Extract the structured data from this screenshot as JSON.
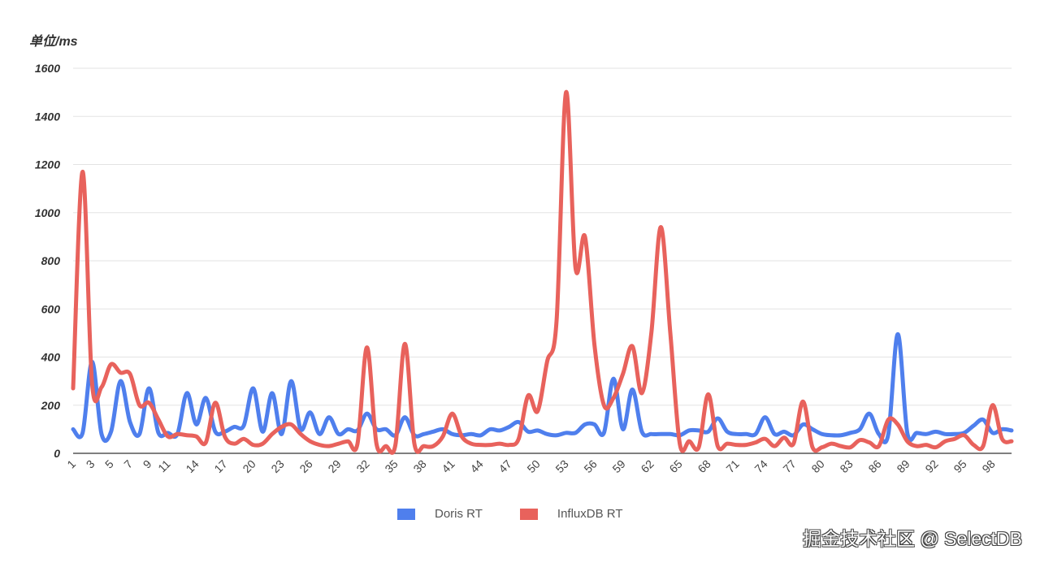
{
  "chart_data": {
    "type": "line",
    "title": "",
    "ylabel": "单位/ms",
    "xlabel": "",
    "ylim": [
      0,
      1600
    ],
    "yticks": [
      0,
      200,
      400,
      600,
      800,
      1000,
      1200,
      1400,
      1600
    ],
    "xlim": [
      1,
      100
    ],
    "xtick_labels": [
      1,
      3,
      5,
      7,
      9,
      11,
      14,
      17,
      20,
      23,
      26,
      29,
      32,
      35,
      38,
      41,
      44,
      47,
      50,
      53,
      56,
      59,
      62,
      65,
      68,
      71,
      74,
      77,
      80,
      83,
      86,
      89,
      92,
      95,
      98
    ],
    "grid": "horizontal",
    "smooth": true,
    "legend_position": "bottom",
    "series": [
      {
        "name": "Doris RT",
        "color": "#4f7fed",
        "values": [
          100,
          85,
          380,
          80,
          90,
          300,
          130,
          80,
          270,
          85,
          85,
          80,
          250,
          120,
          230,
          90,
          90,
          110,
          115,
          270,
          90,
          250,
          80,
          300,
          100,
          170,
          80,
          150,
          80,
          100,
          95,
          165,
          100,
          100,
          75,
          150,
          75,
          80,
          90,
          100,
          80,
          75,
          80,
          75,
          100,
          95,
          110,
          130,
          90,
          95,
          80,
          75,
          85,
          85,
          120,
          120,
          85,
          310,
          100,
          265,
          90,
          80,
          80,
          80,
          75,
          95,
          95,
          90,
          145,
          90,
          80,
          80,
          80,
          150,
          80,
          90,
          75,
          120,
          100,
          80,
          75,
          75,
          85,
          100,
          165,
          80,
          80,
          495,
          85,
          85,
          80,
          90,
          80,
          80,
          85,
          115,
          140,
          85,
          100,
          95
        ]
      },
      {
        "name": "InfluxDB RT",
        "color": "#e8625c",
        "values": [
          270,
          1170,
          290,
          275,
          370,
          335,
          330,
          200,
          210,
          140,
          70,
          80,
          75,
          70,
          45,
          210,
          70,
          40,
          60,
          35,
          40,
          80,
          110,
          120,
          80,
          50,
          35,
          30,
          40,
          50,
          40,
          440,
          40,
          30,
          35,
          455,
          40,
          30,
          30,
          70,
          165,
          70,
          40,
          35,
          35,
          40,
          35,
          60,
          240,
          175,
          380,
          550,
          1500,
          770,
          900,
          450,
          200,
          230,
          330,
          445,
          250,
          500,
          940,
          500,
          40,
          50,
          25,
          245,
          30,
          40,
          35,
          35,
          45,
          60,
          30,
          65,
          40,
          215,
          25,
          25,
          40,
          30,
          25,
          55,
          45,
          30,
          140,
          120,
          50,
          30,
          35,
          25,
          50,
          60,
          75,
          35,
          30,
          200,
          60,
          50
        ]
      }
    ]
  },
  "watermark": "掘金技术社区 @ SelectDB"
}
